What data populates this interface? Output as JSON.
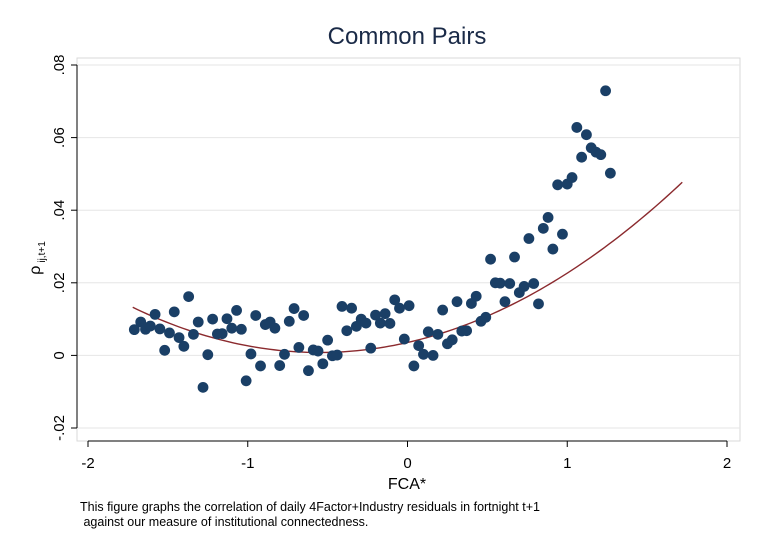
{
  "chart_data": {
    "type": "scatter",
    "title": "Common Pairs",
    "xlabel": "FCA*",
    "ylabel_main": "ρ",
    "ylabel_sub": "ij,t+1",
    "xlim": [
      -2,
      2
    ],
    "ylim": [
      -0.02,
      0.08
    ],
    "xticks": [
      -2,
      -1,
      0,
      1,
      2
    ],
    "xtick_labels": [
      "-2",
      "-1",
      "0",
      "1",
      "2"
    ],
    "yticks": [
      -0.02,
      0,
      0.02,
      0.04,
      0.06,
      0.08
    ],
    "ytick_labels": [
      "-.02",
      "0",
      ".02",
      ".04",
      ".06",
      ".08"
    ],
    "grid": true,
    "colors": {
      "points": "#1a3f66",
      "fit": "#8b2a2e",
      "grid": "#e6e6e6"
    },
    "fit": {
      "type": "quadratic",
      "x_range": [
        -1.72,
        1.72
      ],
      "a": 0.0091,
      "h": -0.55,
      "k": 0.0008
    },
    "points": [
      [
        -1.71,
        0.0071
      ],
      [
        -1.67,
        0.0092
      ],
      [
        -1.64,
        0.0072
      ],
      [
        -1.61,
        0.0081
      ],
      [
        -1.58,
        0.0113
      ],
      [
        -1.55,
        0.0073
      ],
      [
        -1.52,
        0.0014
      ],
      [
        -1.49,
        0.0062
      ],
      [
        -1.46,
        0.012
      ],
      [
        -1.43,
        0.0049
      ],
      [
        -1.4,
        0.0025
      ],
      [
        -1.37,
        0.0162
      ],
      [
        -1.34,
        0.0058
      ],
      [
        -1.31,
        0.0092
      ],
      [
        -1.28,
        -0.0088
      ],
      [
        -1.25,
        0.0002
      ],
      [
        -1.22,
        0.01
      ],
      [
        -1.19,
        0.0059
      ],
      [
        -1.16,
        0.006
      ],
      [
        -1.13,
        0.0101
      ],
      [
        -1.1,
        0.0075
      ],
      [
        -1.07,
        0.0124
      ],
      [
        -1.04,
        0.0072
      ],
      [
        -1.01,
        -0.007
      ],
      [
        -0.98,
        0.0004
      ],
      [
        -0.95,
        0.011
      ],
      [
        -0.92,
        -0.0029
      ],
      [
        -0.89,
        0.0085
      ],
      [
        -0.86,
        0.0092
      ],
      [
        -0.83,
        0.0075
      ],
      [
        -0.8,
        -0.0028
      ],
      [
        -0.77,
        0.0003
      ],
      [
        -0.74,
        0.0094
      ],
      [
        -0.71,
        0.0129
      ],
      [
        -0.68,
        0.0022
      ],
      [
        -0.65,
        0.011
      ],
      [
        -0.62,
        -0.0042
      ],
      [
        -0.59,
        0.0015
      ],
      [
        -0.56,
        0.0012
      ],
      [
        -0.53,
        -0.0023
      ],
      [
        -0.5,
        0.0042
      ],
      [
        -0.47,
        -0.0001
      ],
      [
        -0.44,
        0.0001
      ],
      [
        -0.41,
        0.0135
      ],
      [
        -0.38,
        0.0068
      ],
      [
        -0.35,
        0.013
      ],
      [
        -0.32,
        0.008
      ],
      [
        -0.29,
        0.01
      ],
      [
        -0.26,
        0.0089
      ],
      [
        -0.23,
        0.002
      ],
      [
        -0.2,
        0.0111
      ],
      [
        -0.17,
        0.0089
      ],
      [
        -0.14,
        0.0115
      ],
      [
        -0.11,
        0.0088
      ],
      [
        -0.08,
        0.0153
      ],
      [
        -0.05,
        0.013
      ],
      [
        -0.02,
        0.0045
      ],
      [
        0.01,
        0.0137
      ],
      [
        0.04,
        -0.0029
      ],
      [
        0.07,
        0.0027
      ],
      [
        0.1,
        0.0003
      ],
      [
        0.13,
        0.0065
      ],
      [
        0.16,
        0.0
      ],
      [
        0.19,
        0.0058
      ],
      [
        0.22,
        0.0125
      ],
      [
        0.25,
        0.0032
      ],
      [
        0.28,
        0.0043
      ],
      [
        0.31,
        0.0148
      ],
      [
        0.34,
        0.0067
      ],
      [
        0.37,
        0.0068
      ],
      [
        0.4,
        0.0143
      ],
      [
        0.43,
        0.0163
      ],
      [
        0.46,
        0.0094
      ],
      [
        0.49,
        0.0105
      ],
      [
        0.52,
        0.0265
      ],
      [
        0.55,
        0.02
      ],
      [
        0.58,
        0.0199
      ],
      [
        0.61,
        0.0148
      ],
      [
        0.64,
        0.0198
      ],
      [
        0.67,
        0.0271
      ],
      [
        0.7,
        0.0173
      ],
      [
        0.73,
        0.019
      ],
      [
        0.76,
        0.0322
      ],
      [
        0.79,
        0.0198
      ],
      [
        0.82,
        0.0142
      ],
      [
        0.85,
        0.035
      ],
      [
        0.88,
        0.038
      ],
      [
        0.91,
        0.0293
      ],
      [
        0.94,
        0.047
      ],
      [
        0.97,
        0.0334
      ],
      [
        1.0,
        0.0472
      ],
      [
        1.03,
        0.049
      ],
      [
        1.06,
        0.0628
      ],
      [
        1.09,
        0.0546
      ],
      [
        1.12,
        0.0608
      ],
      [
        1.15,
        0.0572
      ],
      [
        1.18,
        0.056
      ],
      [
        1.21,
        0.0553
      ],
      [
        1.24,
        0.0729
      ],
      [
        1.27,
        0.0502
      ]
    ]
  },
  "caption": {
    "line1": "This figure graphs the correlation of daily 4Factor+Industry residuals in fortnight t+1",
    "line2": " against our measure of institutional connectedness."
  }
}
